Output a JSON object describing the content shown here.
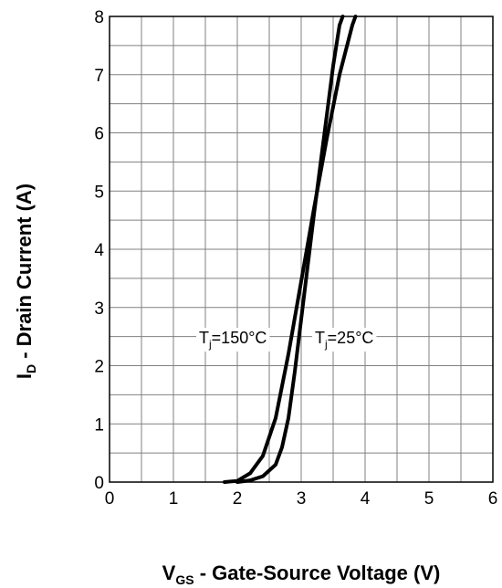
{
  "chart_data": {
    "type": "line",
    "title": "",
    "xlabel": {
      "main": "V",
      "sub": "GS",
      "rest": " - Gate-Source Voltage (V)"
    },
    "ylabel": {
      "main": "I",
      "sub": "D",
      "rest": " - Drain Current (A)"
    },
    "xlim": [
      0,
      6
    ],
    "ylim": [
      0,
      8
    ],
    "x_ticks": [
      "0",
      "1",
      "2",
      "3",
      "4",
      "5",
      "6"
    ],
    "y_ticks": [
      "0",
      "1",
      "2",
      "3",
      "4",
      "5",
      "6",
      "7",
      "8"
    ],
    "x_minor_step": 0.5,
    "y_minor_step": 0.5,
    "grid": true,
    "series": [
      {
        "name": {
          "main": "T",
          "sub": "j",
          "rest": "=150°C"
        },
        "x": [
          1.8,
          2.0,
          2.2,
          2.4,
          2.6,
          2.8,
          3.0,
          3.2,
          3.4,
          3.6,
          3.8,
          3.85
        ],
        "y": [
          0.0,
          0.02,
          0.15,
          0.45,
          1.1,
          2.2,
          3.45,
          4.7,
          5.9,
          7.0,
          7.85,
          8.0
        ]
      },
      {
        "name": {
          "main": "T",
          "sub": "j",
          "rest": "=25°C"
        },
        "x": [
          2.0,
          2.2,
          2.4,
          2.6,
          2.7,
          2.8,
          2.9,
          3.0,
          3.1,
          3.2,
          3.3,
          3.4,
          3.5,
          3.6,
          3.65
        ],
        "y": [
          0.0,
          0.03,
          0.1,
          0.3,
          0.6,
          1.1,
          1.9,
          2.8,
          3.7,
          4.6,
          5.45,
          6.3,
          7.15,
          7.85,
          8.0
        ]
      }
    ]
  }
}
